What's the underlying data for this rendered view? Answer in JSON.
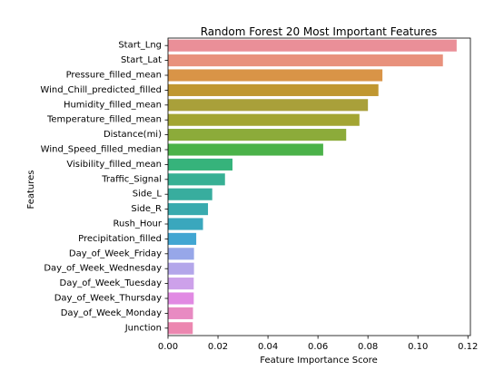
{
  "chart_data": {
    "type": "bar",
    "orientation": "horizontal",
    "title": "Random Forest 20 Most Important Features",
    "xlabel": "Feature Importance Score",
    "ylabel": "Features",
    "xlim": [
      0,
      0.121
    ],
    "xticks": [
      0.0,
      0.02,
      0.04,
      0.06,
      0.08,
      0.1,
      0.12
    ],
    "xtick_labels": [
      "0.00",
      "0.02",
      "0.04",
      "0.06",
      "0.08",
      "0.10",
      "0.12"
    ],
    "grid": false,
    "legend": "none",
    "categories": [
      "Start_Lng",
      "Start_Lat",
      "Pressure_filled_mean",
      "Wind_Chill_predicted_filled",
      "Humidity_filled_mean",
      "Temperature_filled_mean",
      "Distance(mi)",
      "Wind_Speed_filled_median",
      "Visibility_filled_mean",
      "Traffic_Signal",
      "Side_L",
      "Side_R",
      "Rush_Hour",
      "Precipitation_filled",
      "Day_of_Week_Friday",
      "Day_of_Week_Wednesday",
      "Day_of_Week_Tuesday",
      "Day_of_Week_Thursday",
      "Day_of_Week_Monday",
      "Junction"
    ],
    "values": [
      0.1155,
      0.11,
      0.0858,
      0.0842,
      0.08,
      0.0766,
      0.0713,
      0.0621,
      0.0258,
      0.0228,
      0.0177,
      0.016,
      0.014,
      0.0113,
      0.0104,
      0.0104,
      0.0103,
      0.0103,
      0.01,
      0.0099
    ],
    "colors": [
      "#ea8f98",
      "#e8917c",
      "#d99447",
      "#c09730",
      "#a9a03a",
      "#a3a532",
      "#8cab3a",
      "#4bb249",
      "#36b37b",
      "#37b094",
      "#38ad9e",
      "#39aaae",
      "#3aa7bd",
      "#41a6d2",
      "#97a7e9",
      "#b3a6ea",
      "#cda1ea",
      "#e18ae3",
      "#e88ac2",
      "#ec87b0"
    ]
  }
}
